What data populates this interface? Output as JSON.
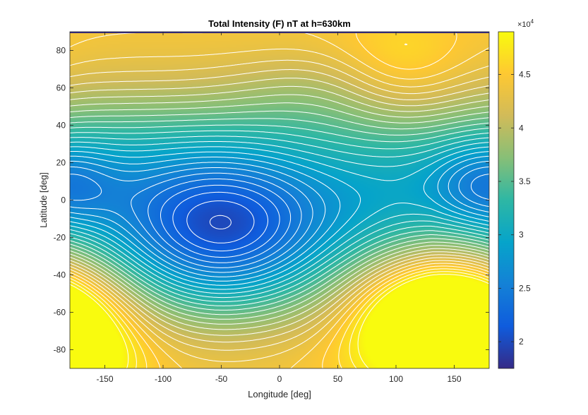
{
  "chart_data": {
    "type": "contour",
    "title": "Total Intensity (F) nT at h=630km",
    "xlabel": "Longitude [deg]",
    "ylabel": "Latitude [deg]",
    "xlim": [
      -180,
      180
    ],
    "ylim": [
      -90,
      90
    ],
    "xticks": [
      -150,
      -100,
      -50,
      0,
      50,
      100,
      150
    ],
    "yticks": [
      -80,
      -60,
      -40,
      -20,
      0,
      20,
      40,
      60,
      80
    ],
    "xtick_labels": [
      "-150",
      "-100",
      "-50",
      "0",
      "50",
      "100",
      "150"
    ],
    "ytick_labels": [
      "-80",
      "-60",
      "-40",
      "-20",
      "0",
      "20",
      "40",
      "60",
      "80"
    ],
    "colorbar": {
      "colormap": "parula",
      "range": [
        17500,
        49000
      ],
      "ticks": [
        20000,
        25000,
        30000,
        35000,
        40000,
        45000
      ],
      "tick_labels": [
        "2",
        "2.5",
        "3",
        "3.5",
        "4",
        "4.5"
      ],
      "exponent_label": "×10",
      "exponent_power": "4"
    },
    "contour_line_color": "#ffffff",
    "contour_spacing_nT": 1000,
    "field_features": [
      {
        "kind": "minimum",
        "lon": -60,
        "lat": -22,
        "value": 17500
      },
      {
        "kind": "maximum",
        "lon": 132,
        "lat": -58,
        "value": 49000
      },
      {
        "kind": "maximum",
        "lon": 103,
        "lat": 68,
        "value": 45500
      },
      {
        "kind": "maximum",
        "lon": -170,
        "lat": -70,
        "value": 45000
      },
      {
        "kind": "plateau",
        "lon": -120,
        "lat": 82,
        "value": 44500
      },
      {
        "kind": "saddle",
        "lon": 100,
        "lat": 10,
        "value": 30500
      },
      {
        "kind": "minimum",
        "lon": 170,
        "lat": 8,
        "value": 27000
      }
    ]
  }
}
